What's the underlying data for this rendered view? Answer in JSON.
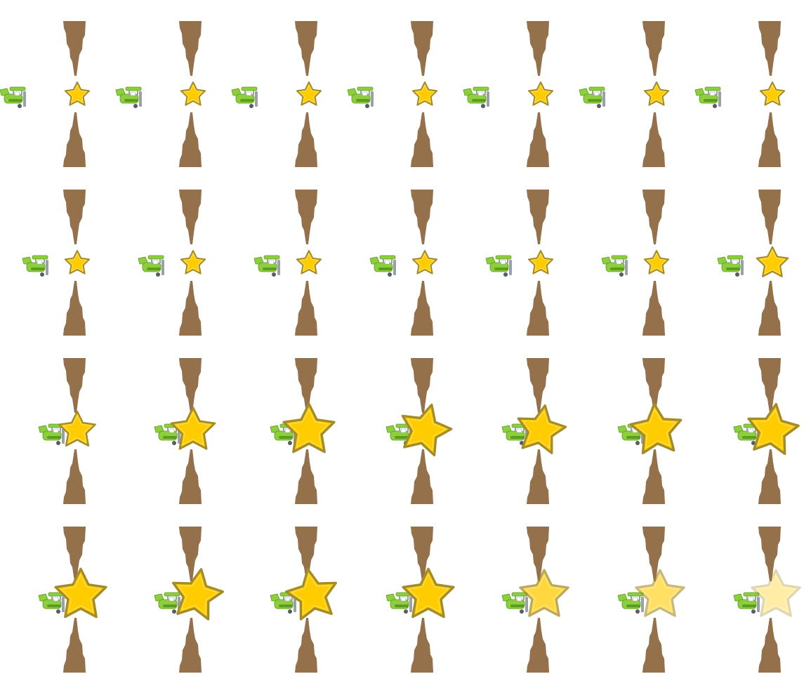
{
  "sheet": {
    "columns": 7,
    "rows": 4,
    "background": "#ffffff"
  },
  "colors": {
    "stalactite": "#94704b",
    "star_fill": "#ffcc00",
    "star_stroke": "#a38b2a",
    "plane_body": "#8ccf3c",
    "plane_dark": "#5f9a22",
    "plane_grey": "#9aa0a8"
  },
  "icons": {
    "plane": "plane-icon",
    "star": "star-icon",
    "obstacle": "stalactite-icon"
  },
  "frames": [
    {
      "star_scale": 1.0,
      "star_opacity": 1,
      "star_rotate": 0,
      "gap_open": 1,
      "plane_phase": 0
    },
    {
      "star_scale": 1.0,
      "star_opacity": 1,
      "star_rotate": 0,
      "gap_open": 1,
      "plane_phase": 0
    },
    {
      "star_scale": 1.0,
      "star_opacity": 1,
      "star_rotate": 0,
      "gap_open": 1,
      "plane_phase": 0
    },
    {
      "star_scale": 1.0,
      "star_opacity": 1,
      "star_rotate": 0,
      "gap_open": 1,
      "plane_phase": 0
    },
    {
      "star_scale": 1.0,
      "star_opacity": 1,
      "star_rotate": 0,
      "gap_open": 1,
      "plane_phase": 0
    },
    {
      "star_scale": 1.0,
      "star_opacity": 1,
      "star_rotate": 0,
      "gap_open": 1,
      "plane_phase": 0
    },
    {
      "star_scale": 1.0,
      "star_opacity": 1,
      "star_rotate": 0,
      "gap_open": 1,
      "plane_phase": 0
    },
    {
      "star_scale": 1.0,
      "star_opacity": 1,
      "star_rotate": 0,
      "gap_open": 1,
      "plane_phase": 1
    },
    {
      "star_scale": 1.0,
      "star_opacity": 1,
      "star_rotate": 0,
      "gap_open": 1,
      "plane_phase": 1
    },
    {
      "star_scale": 1.0,
      "star_opacity": 1,
      "star_rotate": 0,
      "gap_open": 1,
      "plane_phase": 1
    },
    {
      "star_scale": 1.0,
      "star_opacity": 1,
      "star_rotate": 0,
      "gap_open": 1,
      "plane_phase": 1
    },
    {
      "star_scale": 1.0,
      "star_opacity": 1,
      "star_rotate": 0,
      "gap_open": 1,
      "plane_phase": 1
    },
    {
      "star_scale": 1.0,
      "star_opacity": 1,
      "star_rotate": 0,
      "gap_open": 1,
      "plane_phase": 1
    },
    {
      "star_scale": 1.3,
      "star_opacity": 1,
      "star_rotate": 0,
      "gap_open": 1,
      "plane_phase": 1
    },
    {
      "star_scale": 1.5,
      "star_opacity": 1,
      "star_rotate": 0,
      "gap_open": 1,
      "plane_phase": 2
    },
    {
      "star_scale": 1.8,
      "star_opacity": 1,
      "star_rotate": 0,
      "gap_open": 1,
      "plane_phase": 2
    },
    {
      "star_scale": 2.1,
      "star_opacity": 1,
      "star_rotate": 0,
      "gap_open": 1,
      "plane_phase": 2
    },
    {
      "star_scale": 2.1,
      "star_opacity": 1,
      "star_rotate": 15,
      "gap_open": 1,
      "plane_phase": 2
    },
    {
      "star_scale": 2.0,
      "star_opacity": 1,
      "star_rotate": 10,
      "gap_open": 1,
      "plane_phase": 2
    },
    {
      "star_scale": 2.1,
      "star_opacity": 1,
      "star_rotate": -5,
      "gap_open": 1,
      "plane_phase": 2
    },
    {
      "star_scale": 2.1,
      "star_opacity": 1,
      "star_rotate": 8,
      "gap_open": 1,
      "plane_phase": 2
    },
    {
      "star_scale": 2.1,
      "star_opacity": 1,
      "star_rotate": 0,
      "gap_open": 1,
      "plane_phase": 3
    },
    {
      "star_scale": 2.1,
      "star_opacity": 1,
      "star_rotate": 10,
      "gap_open": 1,
      "plane_phase": 3
    },
    {
      "star_scale": 2.1,
      "star_opacity": 1,
      "star_rotate": -10,
      "gap_open": 1,
      "plane_phase": 3
    },
    {
      "star_scale": 2.1,
      "star_opacity": 1,
      "star_rotate": 0,
      "gap_open": 1,
      "plane_phase": 3
    },
    {
      "star_scale": 2.0,
      "star_opacity": 0.75,
      "star_rotate": 0,
      "gap_open": 1,
      "plane_phase": 4
    },
    {
      "star_scale": 2.0,
      "star_opacity": 0.6,
      "star_rotate": 0,
      "gap_open": 1,
      "plane_phase": 5
    },
    {
      "star_scale": 2.0,
      "star_opacity": 0.35,
      "star_rotate": 0,
      "gap_open": 1,
      "plane_phase": 6
    }
  ]
}
